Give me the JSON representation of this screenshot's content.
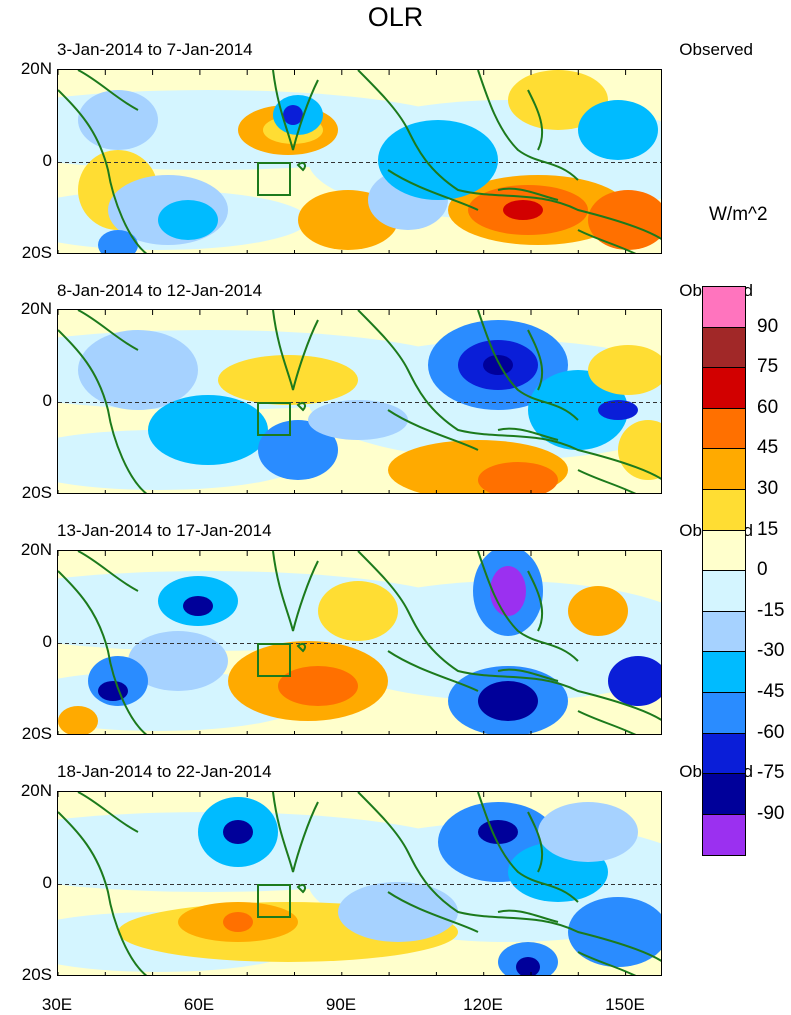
{
  "title": "OLR",
  "unit": "W/m^2",
  "panels": [
    {
      "date_range": "3-Jan-2014 to 7-Jan-2014",
      "label": "Observed"
    },
    {
      "date_range": "8-Jan-2014 to 12-Jan-2014",
      "label": "Observed"
    },
    {
      "date_range": "13-Jan-2014 to 17-Jan-2014",
      "label": "Observed"
    },
    {
      "date_range": "18-Jan-2014 to 22-Jan-2014",
      "label": "Observed"
    }
  ],
  "lat_labels": [
    "20N",
    "0",
    "20S"
  ],
  "lon_labels": [
    "30E",
    "60E",
    "90E",
    "120E",
    "150E"
  ],
  "colorbar": {
    "labels": [
      "90",
      "75",
      "60",
      "45",
      "30",
      "15",
      "0",
      "-15",
      "-30",
      "-45",
      "-60",
      "-75",
      "-90"
    ],
    "colors": [
      "#ff74be",
      "#a12828",
      "#d20000",
      "#ff7000",
      "#ffaa00",
      "#ffdd33",
      "#ffffcc",
      "#d4f5ff",
      "#a6d2ff",
      "#00bbff",
      "#2a8cff",
      "#0a1ed8",
      "#00009a",
      "#9b30f0"
    ]
  }
}
